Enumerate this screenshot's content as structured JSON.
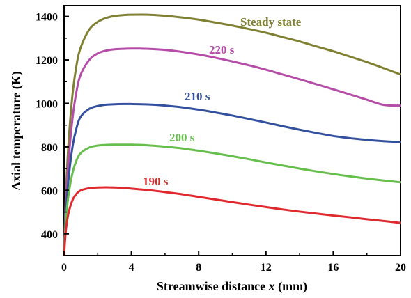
{
  "chart_data": {
    "type": "line",
    "title": "",
    "xlabel": "Streamwise distance",
    "xlabel_var": "x",
    "xlabel_unit": "(mm)",
    "ylabel": "Axial temperature (K)",
    "xlim": [
      0,
      20
    ],
    "ylim": [
      300,
      1450
    ],
    "xticks": [
      0,
      4,
      8,
      12,
      16,
      20
    ],
    "yticks": [
      400,
      600,
      800,
      1000,
      1200,
      1400
    ],
    "grid": false,
    "legend": "none",
    "series": [
      {
        "name": "Steady state",
        "color": "#808033",
        "x": [
          0,
          0.1,
          0.25,
          0.5,
          0.75,
          1,
          1.5,
          2,
          2.5,
          3,
          3.5,
          4,
          5,
          6,
          7,
          8,
          9,
          10,
          11,
          12,
          13,
          14,
          15,
          16,
          17,
          18,
          19,
          20
        ],
        "y": [
          300,
          560,
          800,
          1040,
          1180,
          1260,
          1340,
          1375,
          1393,
          1402,
          1406,
          1408,
          1408,
          1403,
          1395,
          1385,
          1372,
          1358,
          1342,
          1325,
          1305,
          1285,
          1262,
          1240,
          1215,
          1190,
          1162,
          1133
        ]
      },
      {
        "name": "220 s",
        "color": "#b54da8",
        "x": [
          0,
          0.1,
          0.25,
          0.5,
          0.75,
          1,
          1.5,
          2,
          2.5,
          3,
          3.5,
          4,
          4.5,
          5,
          6,
          7,
          8,
          9,
          10,
          11,
          12,
          13,
          14,
          15,
          16,
          17,
          18,
          19,
          20
        ],
        "y": [
          300,
          520,
          720,
          930,
          1060,
          1135,
          1200,
          1230,
          1243,
          1249,
          1251,
          1252,
          1252,
          1251,
          1246,
          1237,
          1225,
          1210,
          1193,
          1175,
          1155,
          1133,
          1111,
          1088,
          1065,
          1041,
          1017,
          993,
          990
        ]
      },
      {
        "name": "210 s",
        "color": "#33509e",
        "x": [
          0,
          0.1,
          0.25,
          0.5,
          0.75,
          1,
          1.5,
          2,
          2.5,
          3,
          3.5,
          4,
          5,
          6,
          7,
          8,
          9,
          10,
          11,
          12,
          13,
          14,
          15,
          16,
          17,
          18,
          19,
          20
        ],
        "y": [
          300,
          480,
          640,
          800,
          890,
          940,
          975,
          988,
          994,
          996,
          997,
          997,
          995,
          990,
          982,
          971,
          958,
          944,
          928,
          912,
          895,
          879,
          864,
          850,
          840,
          832,
          826,
          822
        ]
      },
      {
        "name": "200 s",
        "color": "#66bf4d",
        "x": [
          0,
          0.1,
          0.25,
          0.5,
          0.75,
          1,
          1.5,
          2,
          2.5,
          3,
          3.5,
          4,
          5,
          6,
          7,
          8,
          9,
          10,
          11,
          12,
          13,
          14,
          15,
          16,
          17,
          18,
          19,
          20
        ],
        "y": [
          300,
          450,
          570,
          680,
          740,
          772,
          797,
          806,
          809,
          810,
          810,
          810,
          807,
          801,
          793,
          782,
          770,
          757,
          743,
          728,
          714,
          700,
          687,
          675,
          664,
          654,
          645,
          637
        ]
      },
      {
        "name": "190 s",
        "color": "#e0292e",
        "x": [
          0,
          0.1,
          0.25,
          0.5,
          0.75,
          1,
          1.5,
          2,
          2.5,
          3,
          3.5,
          4,
          5,
          6,
          7,
          8,
          9,
          10,
          11,
          12,
          13,
          14,
          15,
          16,
          17,
          18,
          19,
          20
        ],
        "y": [
          300,
          410,
          490,
          555,
          585,
          600,
          610,
          613,
          614,
          613,
          611,
          608,
          601,
          592,
          582,
          570,
          558,
          546,
          534,
          523,
          512,
          502,
          493,
          484,
          476,
          467,
          459,
          450
        ]
      }
    ]
  }
}
